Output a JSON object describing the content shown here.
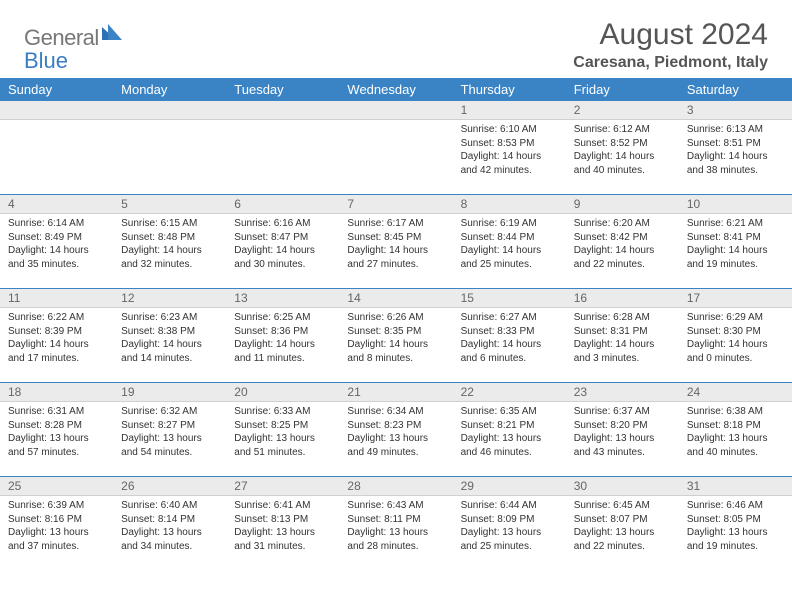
{
  "brand": {
    "word1": "General",
    "word2": "Blue"
  },
  "title": "August 2024",
  "location": "Caresana, Piedmont, Italy",
  "colors": {
    "header_bg": "#3a84c6",
    "daynum_bg": "#ebebeb",
    "row_divider": "#3a84c6",
    "text": "#333333",
    "brand_gray": "#777777",
    "brand_blue": "#3a7dc4"
  },
  "typography": {
    "title_fontsize": 30,
    "location_fontsize": 16,
    "weekday_fontsize": 13,
    "daynum_fontsize": 12,
    "cell_fontsize": 10
  },
  "weekdays": [
    "Sunday",
    "Monday",
    "Tuesday",
    "Wednesday",
    "Thursday",
    "Friday",
    "Saturday"
  ],
  "layout": {
    "cols": 7,
    "rows": 5,
    "first_weekday_index": 4
  },
  "days": [
    {
      "n": 1,
      "sunrise": "6:10 AM",
      "sunset": "8:53 PM",
      "daylight": "14 hours and 42 minutes."
    },
    {
      "n": 2,
      "sunrise": "6:12 AM",
      "sunset": "8:52 PM",
      "daylight": "14 hours and 40 minutes."
    },
    {
      "n": 3,
      "sunrise": "6:13 AM",
      "sunset": "8:51 PM",
      "daylight": "14 hours and 38 minutes."
    },
    {
      "n": 4,
      "sunrise": "6:14 AM",
      "sunset": "8:49 PM",
      "daylight": "14 hours and 35 minutes."
    },
    {
      "n": 5,
      "sunrise": "6:15 AM",
      "sunset": "8:48 PM",
      "daylight": "14 hours and 32 minutes."
    },
    {
      "n": 6,
      "sunrise": "6:16 AM",
      "sunset": "8:47 PM",
      "daylight": "14 hours and 30 minutes."
    },
    {
      "n": 7,
      "sunrise": "6:17 AM",
      "sunset": "8:45 PM",
      "daylight": "14 hours and 27 minutes."
    },
    {
      "n": 8,
      "sunrise": "6:19 AM",
      "sunset": "8:44 PM",
      "daylight": "14 hours and 25 minutes."
    },
    {
      "n": 9,
      "sunrise": "6:20 AM",
      "sunset": "8:42 PM",
      "daylight": "14 hours and 22 minutes."
    },
    {
      "n": 10,
      "sunrise": "6:21 AM",
      "sunset": "8:41 PM",
      "daylight": "14 hours and 19 minutes."
    },
    {
      "n": 11,
      "sunrise": "6:22 AM",
      "sunset": "8:39 PM",
      "daylight": "14 hours and 17 minutes."
    },
    {
      "n": 12,
      "sunrise": "6:23 AM",
      "sunset": "8:38 PM",
      "daylight": "14 hours and 14 minutes."
    },
    {
      "n": 13,
      "sunrise": "6:25 AM",
      "sunset": "8:36 PM",
      "daylight": "14 hours and 11 minutes."
    },
    {
      "n": 14,
      "sunrise": "6:26 AM",
      "sunset": "8:35 PM",
      "daylight": "14 hours and 8 minutes."
    },
    {
      "n": 15,
      "sunrise": "6:27 AM",
      "sunset": "8:33 PM",
      "daylight": "14 hours and 6 minutes."
    },
    {
      "n": 16,
      "sunrise": "6:28 AM",
      "sunset": "8:31 PM",
      "daylight": "14 hours and 3 minutes."
    },
    {
      "n": 17,
      "sunrise": "6:29 AM",
      "sunset": "8:30 PM",
      "daylight": "14 hours and 0 minutes."
    },
    {
      "n": 18,
      "sunrise": "6:31 AM",
      "sunset": "8:28 PM",
      "daylight": "13 hours and 57 minutes."
    },
    {
      "n": 19,
      "sunrise": "6:32 AM",
      "sunset": "8:27 PM",
      "daylight": "13 hours and 54 minutes."
    },
    {
      "n": 20,
      "sunrise": "6:33 AM",
      "sunset": "8:25 PM",
      "daylight": "13 hours and 51 minutes."
    },
    {
      "n": 21,
      "sunrise": "6:34 AM",
      "sunset": "8:23 PM",
      "daylight": "13 hours and 49 minutes."
    },
    {
      "n": 22,
      "sunrise": "6:35 AM",
      "sunset": "8:21 PM",
      "daylight": "13 hours and 46 minutes."
    },
    {
      "n": 23,
      "sunrise": "6:37 AM",
      "sunset": "8:20 PM",
      "daylight": "13 hours and 43 minutes."
    },
    {
      "n": 24,
      "sunrise": "6:38 AM",
      "sunset": "8:18 PM",
      "daylight": "13 hours and 40 minutes."
    },
    {
      "n": 25,
      "sunrise": "6:39 AM",
      "sunset": "8:16 PM",
      "daylight": "13 hours and 37 minutes."
    },
    {
      "n": 26,
      "sunrise": "6:40 AM",
      "sunset": "8:14 PM",
      "daylight": "13 hours and 34 minutes."
    },
    {
      "n": 27,
      "sunrise": "6:41 AM",
      "sunset": "8:13 PM",
      "daylight": "13 hours and 31 minutes."
    },
    {
      "n": 28,
      "sunrise": "6:43 AM",
      "sunset": "8:11 PM",
      "daylight": "13 hours and 28 minutes."
    },
    {
      "n": 29,
      "sunrise": "6:44 AM",
      "sunset": "8:09 PM",
      "daylight": "13 hours and 25 minutes."
    },
    {
      "n": 30,
      "sunrise": "6:45 AM",
      "sunset": "8:07 PM",
      "daylight": "13 hours and 22 minutes."
    },
    {
      "n": 31,
      "sunrise": "6:46 AM",
      "sunset": "8:05 PM",
      "daylight": "13 hours and 19 minutes."
    }
  ],
  "labels": {
    "sunrise": "Sunrise:",
    "sunset": "Sunset:",
    "daylight": "Daylight:"
  }
}
